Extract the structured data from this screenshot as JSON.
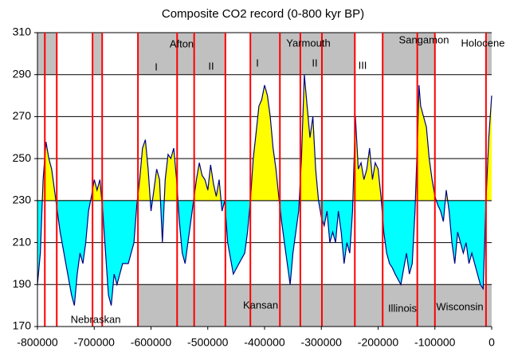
{
  "chart_data": {
    "type": "line",
    "title": "Composite CO2 record (0-800 kyr BP)",
    "x": [
      -800000,
      -795000,
      -790000,
      -785000,
      -780000,
      -775000,
      -770000,
      -765000,
      -760000,
      -750000,
      -740000,
      -735000,
      -730000,
      -725000,
      -720000,
      -715000,
      -710000,
      -705000,
      -700000,
      -695000,
      -690000,
      -685000,
      -680000,
      -675000,
      -670000,
      -665000,
      -660000,
      -650000,
      -640000,
      -630000,
      -625000,
      -620000,
      -615000,
      -610000,
      -605000,
      -600000,
      -595000,
      -590000,
      -585000,
      -580000,
      -575000,
      -570000,
      -565000,
      -560000,
      -555000,
      -550000,
      -545000,
      -540000,
      -535000,
      -530000,
      -525000,
      -520000,
      -515000,
      -510000,
      -505000,
      -500000,
      -495000,
      -490000,
      -485000,
      -480000,
      -475000,
      -470000,
      -465000,
      -455000,
      -445000,
      -435000,
      -430000,
      -425000,
      -420000,
      -415000,
      -410000,
      -405000,
      -400000,
      -395000,
      -390000,
      -385000,
      -380000,
      -375000,
      -370000,
      -365000,
      -360000,
      -355000,
      -350000,
      -345000,
      -340000,
      -335000,
      -330000,
      -325000,
      -320000,
      -315000,
      -310000,
      -305000,
      -300000,
      -295000,
      -290000,
      -285000,
      -280000,
      -275000,
      -270000,
      -265000,
      -260000,
      -255000,
      -250000,
      -245000,
      -240000,
      -235000,
      -230000,
      -225000,
      -220000,
      -215000,
      -210000,
      -205000,
      -200000,
      -195000,
      -190000,
      -185000,
      -180000,
      -175000,
      -170000,
      -160000,
      -150000,
      -145000,
      -140000,
      -135000,
      -130000,
      -128000,
      -125000,
      -120000,
      -115000,
      -110000,
      -105000,
      -100000,
      -95000,
      -90000,
      -85000,
      -80000,
      -75000,
      -70000,
      -65000,
      -60000,
      -55000,
      -50000,
      -45000,
      -40000,
      -35000,
      -30000,
      -25000,
      -20000,
      -15000,
      -10000,
      -5000,
      0
    ],
    "series": [
      {
        "color": "#000080",
        "values": [
          190,
          205,
          240,
          258,
          250,
          245,
          235,
          225,
          215,
          200,
          185,
          180,
          195,
          205,
          200,
          210,
          225,
          232,
          240,
          235,
          240,
          225,
          205,
          185,
          180,
          195,
          190,
          200,
          200,
          210,
          228,
          240,
          255,
          259,
          245,
          225,
          235,
          245,
          240,
          210,
          240,
          252,
          250,
          255,
          240,
          220,
          205,
          200,
          210,
          220,
          230,
          240,
          248,
          242,
          240,
          235,
          247,
          238,
          232,
          240,
          225,
          230,
          210,
          195,
          200,
          205,
          215,
          230,
          250,
          262,
          275,
          278,
          285,
          280,
          270,
          255,
          245,
          232,
          220,
          210,
          200,
          190,
          205,
          215,
          225,
          250,
          290,
          275,
          260,
          270,
          245,
          230,
          222,
          218,
          225,
          210,
          215,
          210,
          225,
          215,
          200,
          210,
          205,
          225,
          270,
          245,
          248,
          240,
          245,
          255,
          240,
          248,
          245,
          232,
          215,
          205,
          200,
          198,
          195,
          190,
          205,
          195,
          200,
          225,
          265,
          285,
          275,
          270,
          265,
          250,
          240,
          232,
          228,
          225,
          220,
          235,
          225,
          210,
          200,
          215,
          210,
          205,
          210,
          200,
          205,
          200,
          195,
          190,
          188,
          230,
          260,
          280
        ]
      }
    ],
    "fill_baseline": 230,
    "above_color": "#ffff00",
    "below_color": "#00ffff",
    "boundaries": [
      -787000,
      -766000,
      -703000,
      -686000,
      -623000,
      -554000,
      -524000,
      -469000,
      -425000,
      -373000,
      -337000,
      -299000,
      -241000,
      -192000,
      -131000,
      -100000,
      -10000
    ],
    "boundary_color": "#ff0000",
    "top_bands": [
      [
        -800000,
        -766000
      ],
      [
        -703000,
        -686000
      ],
      [
        -623000,
        -469000
      ],
      [
        -425000,
        -241000
      ],
      [
        -192000,
        -100000
      ],
      [
        -10000,
        0
      ]
    ],
    "bottom_bands": [
      [
        -623000,
        0
      ]
    ],
    "band_color": "#c0c0c0",
    "annotations": [
      "Afton",
      "Yarmouth",
      "Sangamon",
      "Holocene",
      "I",
      "II",
      "I",
      "II",
      "III",
      "Nebraskan",
      "Kansan",
      "Illinois",
      "Wisconsin"
    ],
    "xlim": [
      -800000,
      0
    ],
    "xticks": [
      -800000,
      -700000,
      -600000,
      -500000,
      -400000,
      -300000,
      -200000,
      -100000,
      0
    ],
    "ylim": [
      170,
      310
    ],
    "yticks": [
      170,
      190,
      210,
      230,
      250,
      270,
      290,
      310
    ],
    "grid": true
  }
}
